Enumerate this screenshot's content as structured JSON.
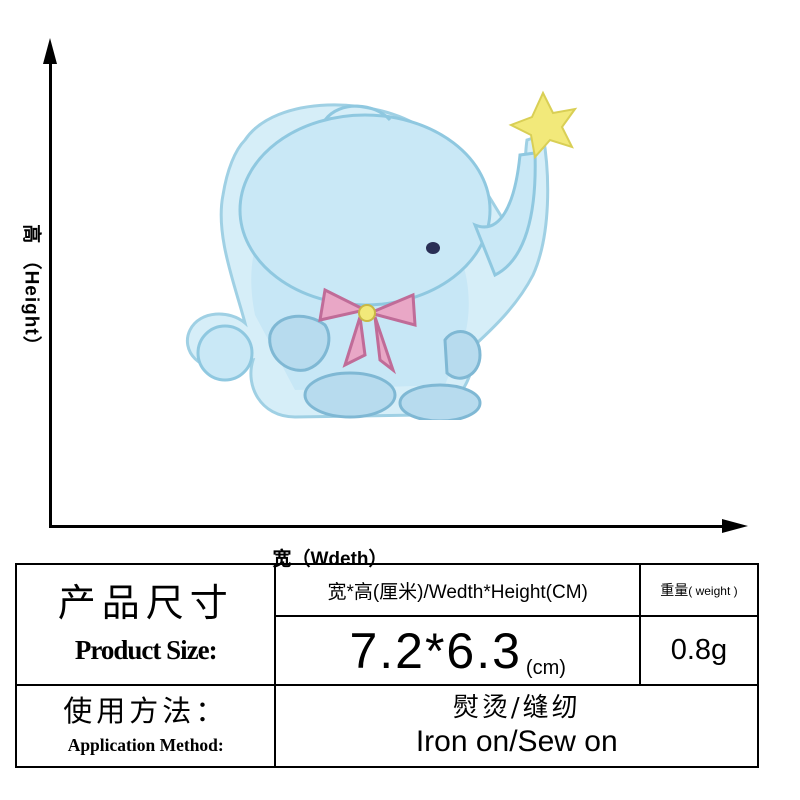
{
  "diagram": {
    "height_label": "高 （Height）",
    "width_label": "宽（Wdeth）"
  },
  "table": {
    "product_label_cn": "产品尺寸",
    "product_label_en": "Product Size:",
    "dimension_header": "宽*高(厘米)/Wedth*Height(CM)",
    "weight_header_cn": "重量",
    "weight_header_en": "( weight )",
    "size_value": "7.2*6.3",
    "size_unit": "(cm)",
    "weight_value": "0.8g",
    "application_label_cn": "使用方法：",
    "application_label_en": "Application Method:",
    "method_cn": "熨烫/缝纫",
    "method_en": "Iron on/Sew on"
  },
  "colors": {
    "patch_blue": "#bfe4f3",
    "patch_border": "#8fc8e0",
    "star_yellow": "#f2e97a",
    "bow_pink": "#d98ab0"
  }
}
